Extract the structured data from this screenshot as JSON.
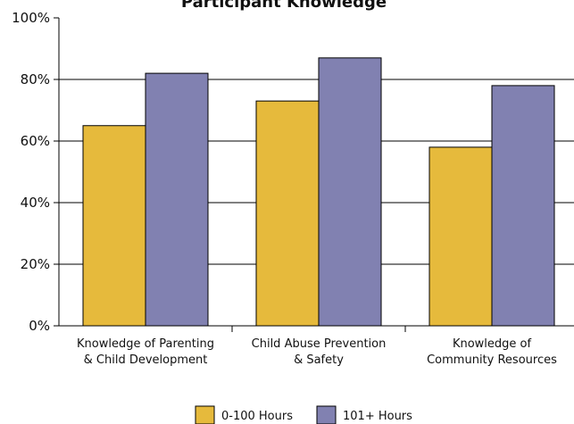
{
  "chart_data": {
    "type": "bar",
    "title": "Participant Knowledge",
    "categories": [
      "Knowledge of Parenting\n& Child Development",
      "Child Abuse Prevention\n& Safety",
      "Knowledge of\nCommunity Resources"
    ],
    "series": [
      {
        "name": "0-100 Hours",
        "color": "#e6ba3c",
        "values": [
          65,
          73,
          58
        ]
      },
      {
        "name": "101+ Hours",
        "color": "#8181b1",
        "values": [
          82,
          87,
          78
        ]
      }
    ],
    "ylim": [
      0,
      100
    ],
    "yticks": [
      {
        "value": 0,
        "label": "0%"
      },
      {
        "value": 20,
        "label": "20%"
      },
      {
        "value": 40,
        "label": "40%"
      },
      {
        "value": 60,
        "label": "60%"
      },
      {
        "value": 80,
        "label": "80%"
      },
      {
        "value": 100,
        "label": "100%"
      }
    ],
    "grid": true
  }
}
